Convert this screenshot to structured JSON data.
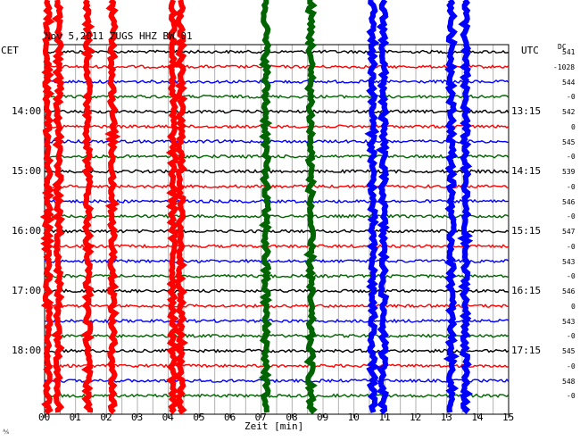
{
  "header": {
    "title": "Nov 5,2011   ZUGS HHZ BW 01",
    "left_tz": "CET",
    "right_tz": "UTC",
    "dc_label": "DC"
  },
  "chart_data": {
    "type": "line",
    "title": "Nov 5,2011   ZUGS HHZ BW 01",
    "xlabel": "Zeit [min]",
    "x_ticks": [
      "00",
      "01",
      "02",
      "03",
      "04",
      "05",
      "06",
      "07",
      "08",
      "09",
      "10",
      "11",
      "12",
      "13",
      "14",
      "15"
    ],
    "xlim": [
      0,
      15
    ],
    "left_hour_labels": [
      "14:00",
      "15:00",
      "16:00",
      "17:00",
      "18:00"
    ],
    "right_hour_labels": [
      "13:15",
      "14:15",
      "15:15",
      "16:15",
      "17:15"
    ],
    "trace_colors": [
      "#000000",
      "#ff0000",
      "#0000ff",
      "#006400"
    ],
    "dc_offsets": [
      "541",
      "-1028",
      "544",
      "-0",
      "542",
      "0",
      "545",
      "-0",
      "539",
      "-0",
      "546",
      "-0",
      "547",
      "-0",
      "543",
      "-0",
      "546",
      "0",
      "543",
      "-0",
      "545",
      "-0",
      "548",
      "-0"
    ],
    "trace_count": 24,
    "events": [
      {
        "minute": 0.1,
        "color": "#ff0000"
      },
      {
        "minute": 0.45,
        "color": "#ff0000"
      },
      {
        "minute": 1.4,
        "color": "#ff0000"
      },
      {
        "minute": 2.2,
        "color": "#ff0000"
      },
      {
        "minute": 4.15,
        "color": "#ff0000"
      },
      {
        "minute": 4.4,
        "color": "#ff0000"
      },
      {
        "minute": 7.15,
        "color": "#006400"
      },
      {
        "minute": 8.6,
        "color": "#006400"
      },
      {
        "minute": 10.6,
        "color": "#0000ff"
      },
      {
        "minute": 10.95,
        "color": "#0000ff"
      },
      {
        "minute": 13.15,
        "color": "#0000ff"
      },
      {
        "minute": 13.6,
        "color": "#0000ff"
      }
    ]
  },
  "footer": {
    "corner_mark": "⅍"
  }
}
